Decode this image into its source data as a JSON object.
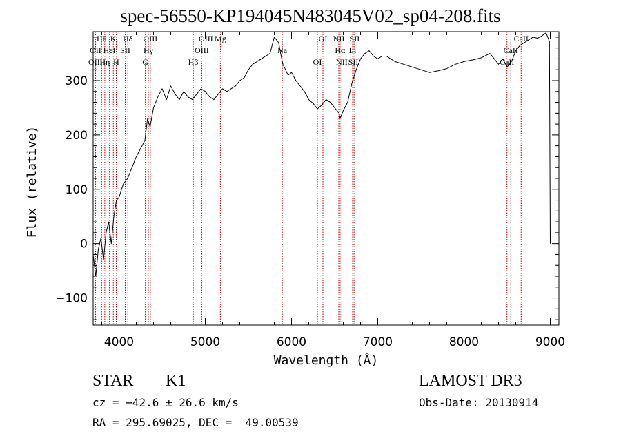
{
  "chart_data": {
    "type": "line",
    "title": "spec-56550-KP194045N483045V02_sp04-208.fits",
    "xlabel": "Wavelength (Å)",
    "ylabel": "Flux (relative)",
    "xlim": [
      3700,
      9100
    ],
    "ylim": [
      -150,
      390
    ],
    "x_ticks": [
      4000,
      5000,
      6000,
      7000,
      8000,
      9000
    ],
    "y_ticks": [
      -100,
      0,
      100,
      200,
      300
    ],
    "grid": false,
    "series": [
      {
        "x": [
          3700,
          3730,
          3760,
          3790,
          3820,
          3850,
          3880,
          3910,
          3940,
          3970,
          4000,
          4050,
          4100,
          4150,
          4200,
          4250,
          4300,
          4330,
          4360,
          4400,
          4450,
          4500,
          4550,
          4600,
          4650,
          4700,
          4750,
          4800,
          4850,
          4900,
          4950,
          5000,
          5050,
          5100,
          5150,
          5200,
          5250,
          5300,
          5350,
          5400,
          5450,
          5500,
          5550,
          5600,
          5650,
          5700,
          5750,
          5800,
          5850,
          5880,
          5900,
          5930,
          5960,
          6000,
          6050,
          6100,
          6150,
          6200,
          6250,
          6300,
          6350,
          6400,
          6450,
          6500,
          6550,
          6563,
          6600,
          6650,
          6700,
          6750,
          6800,
          6850,
          6900,
          6950,
          7000,
          7050,
          7100,
          7200,
          7300,
          7400,
          7500,
          7600,
          7700,
          7800,
          7900,
          8000,
          8100,
          8200,
          8300,
          8350,
          8400,
          8450,
          8500,
          8550,
          8600,
          8650,
          8700,
          8750,
          8800,
          8850,
          8900,
          8950,
          8990,
          9000
        ],
        "y": [
          -20,
          -60,
          -10,
          10,
          -30,
          20,
          40,
          0,
          50,
          80,
          85,
          110,
          120,
          140,
          160,
          175,
          190,
          230,
          215,
          250,
          270,
          285,
          265,
          290,
          275,
          265,
          280,
          270,
          265,
          275,
          285,
          280,
          270,
          265,
          275,
          285,
          280,
          285,
          290,
          300,
          305,
          320,
          330,
          335,
          340,
          345,
          350,
          380,
          370,
          345,
          330,
          320,
          310,
          315,
          300,
          290,
          280,
          265,
          258,
          248,
          255,
          265,
          260,
          250,
          240,
          230,
          245,
          260,
          295,
          320,
          340,
          350,
          355,
          345,
          340,
          345,
          345,
          335,
          330,
          325,
          320,
          315,
          318,
          322,
          330,
          335,
          338,
          342,
          350,
          340,
          330,
          340,
          325,
          335,
          355,
          365,
          370,
          375,
          380,
          378,
          382,
          388,
          372,
          0
        ]
      }
    ],
    "lines": [
      {
        "label": "Hθ",
        "x": 3798
      },
      {
        "label": "OII",
        "x": 3727
      },
      {
        "label": "OIII",
        "x": 3727
      },
      {
        "label": "K",
        "x": 3934
      },
      {
        "label": "HeI",
        "x": 3889
      },
      {
        "label": "Hη",
        "x": 3835
      },
      {
        "label": "Hδ",
        "x": 4102
      },
      {
        "label": "SII",
        "x": 4072
      },
      {
        "label": "H",
        "x": 3968
      },
      {
        "label": "OIII",
        "x": 4363
      },
      {
        "label": "Hγ",
        "x": 4340
      },
      {
        "label": "G",
        "x": 4305
      },
      {
        "label": "OIII",
        "x": 5007
      },
      {
        "label": "OIII",
        "x": 4959
      },
      {
        "label": "Hβ",
        "x": 4861
      },
      {
        "label": "Mg",
        "x": 5175
      },
      {
        "label": "Na",
        "x": 5893
      },
      {
        "label": "OI",
        "x": 6300
      },
      {
        "label": "OI",
        "x": 6364
      },
      {
        "label": "Hα",
        "x": 6563
      },
      {
        "label": "SII",
        "x": 6716
      },
      {
        "label": "NII",
        "x": 6548
      },
      {
        "label": "Li",
        "x": 6708
      },
      {
        "label": "NII",
        "x": 6583
      },
      {
        "label": "SII",
        "x": 6731
      },
      {
        "label": "CaII",
        "x": 8542
      },
      {
        "label": "CaII",
        "x": 8498
      },
      {
        "label": "CaII",
        "x": 8662
      }
    ]
  },
  "footer": {
    "object_class": "STAR",
    "subclass": "K1",
    "survey": "LAMOST DR3",
    "cz": "cz = −42.6 ± 26.6 km/s",
    "obs_date": "Obs-Date: 20130914",
    "coords": "RA = 295.69025, DEC =  49.00539"
  },
  "colors": {
    "line_marker": "#cc0000",
    "spectrum": "#000000"
  }
}
